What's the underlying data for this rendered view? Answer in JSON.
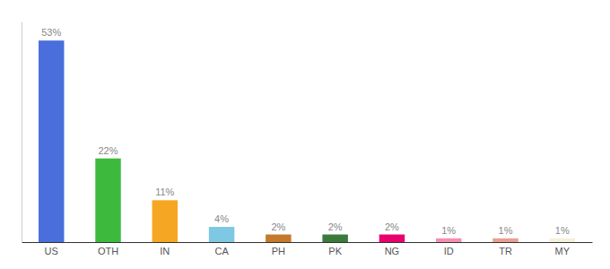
{
  "chart_data": {
    "type": "bar",
    "categories": [
      "US",
      "OTH",
      "IN",
      "CA",
      "PH",
      "PK",
      "NG",
      "ID",
      "TR",
      "MY"
    ],
    "values": [
      53,
      22,
      11,
      4,
      2,
      2,
      2,
      1,
      1,
      1
    ],
    "value_labels": [
      "53%",
      "22%",
      "11%",
      "4%",
      "2%",
      "2%",
      "2%",
      "1%",
      "1%",
      "1%"
    ],
    "colors": [
      "#4a6fdc",
      "#3dba3d",
      "#f5a623",
      "#7ec8e3",
      "#c47a2a",
      "#3a7a3a",
      "#e8006f",
      "#f48fb1",
      "#e8a090",
      "#f5f0dc"
    ],
    "ylim": [
      0,
      58
    ],
    "tick_labels": "x",
    "data_labels": true
  }
}
